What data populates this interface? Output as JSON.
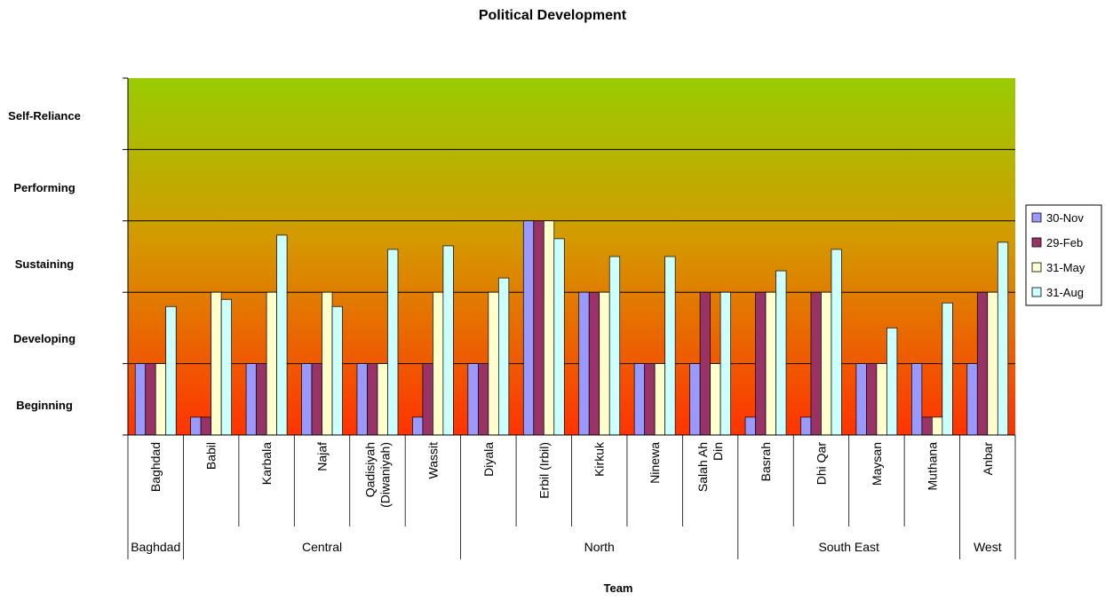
{
  "chart_data": {
    "type": "bar",
    "title": "Political Development",
    "xlabel": "Team",
    "ylabel": "",
    "ylim": [
      0,
      5
    ],
    "y_level_labels": [
      "Beginning",
      "Developing",
      "Sustaining",
      "Performing",
      "Self-Reliance"
    ],
    "grid": true,
    "legend_position": "right",
    "categories": [
      "Baghdad",
      "Babil",
      "Karbala",
      "Najaf",
      "Qadisiyah (Diwaniyah)",
      "Wassit",
      "Diyala",
      "Erbil (Irbil)",
      "Kirkuk",
      "Ninewa",
      "Salah Ah Din",
      "Basrah",
      "Dhi Qar",
      "Maysan",
      "Muthana",
      "Anbar"
    ],
    "category_lines": [
      [
        "Baghdad"
      ],
      [
        "Babil"
      ],
      [
        "Karbala"
      ],
      [
        "Najaf"
      ],
      [
        "Qadisiyah",
        "(Diwaniyah)"
      ],
      [
        "Wassit"
      ],
      [
        "Diyala"
      ],
      [
        "Erbil (Irbil)"
      ],
      [
        "Kirkuk"
      ],
      [
        "Ninewa"
      ],
      [
        "Salah Ah",
        "Din"
      ],
      [
        "Basrah"
      ],
      [
        "Dhi Qar"
      ],
      [
        "Maysan"
      ],
      [
        "Muthana"
      ],
      [
        "Anbar"
      ]
    ],
    "groups": [
      {
        "label": "Baghdad",
        "start": 0,
        "end": 0
      },
      {
        "label": "Central",
        "start": 1,
        "end": 5
      },
      {
        "label": "North",
        "start": 6,
        "end": 10
      },
      {
        "label": "South East",
        "start": 11,
        "end": 14
      },
      {
        "label": "West",
        "start": 15,
        "end": 15
      }
    ],
    "series": [
      {
        "name": "30-Nov",
        "color": "#9999ff",
        "values": [
          1,
          0.25,
          1,
          1,
          1,
          0.25,
          1,
          3,
          2,
          1,
          1,
          0.25,
          0.25,
          1,
          1,
          1
        ]
      },
      {
        "name": "29-Feb",
        "color": "#993366",
        "values": [
          1,
          0.25,
          1,
          1,
          1,
          1,
          1,
          3,
          2,
          1,
          2,
          2,
          2,
          1,
          0.25,
          2
        ]
      },
      {
        "name": "31-May",
        "color": "#ffffcc",
        "values": [
          1,
          2,
          2,
          2,
          1,
          2,
          2,
          3,
          2,
          1,
          1,
          2,
          2,
          1,
          0.25,
          2
        ]
      },
      {
        "name": "31-Aug",
        "color": "#ccffff",
        "values": [
          1.8,
          1.9,
          2.8,
          1.8,
          2.6,
          2.65,
          2.2,
          2.75,
          2.5,
          2.5,
          2,
          2.3,
          2.6,
          1.5,
          1.85,
          2.7
        ]
      }
    ],
    "background_gradient": [
      "#99cc00",
      "#ff3300"
    ]
  }
}
